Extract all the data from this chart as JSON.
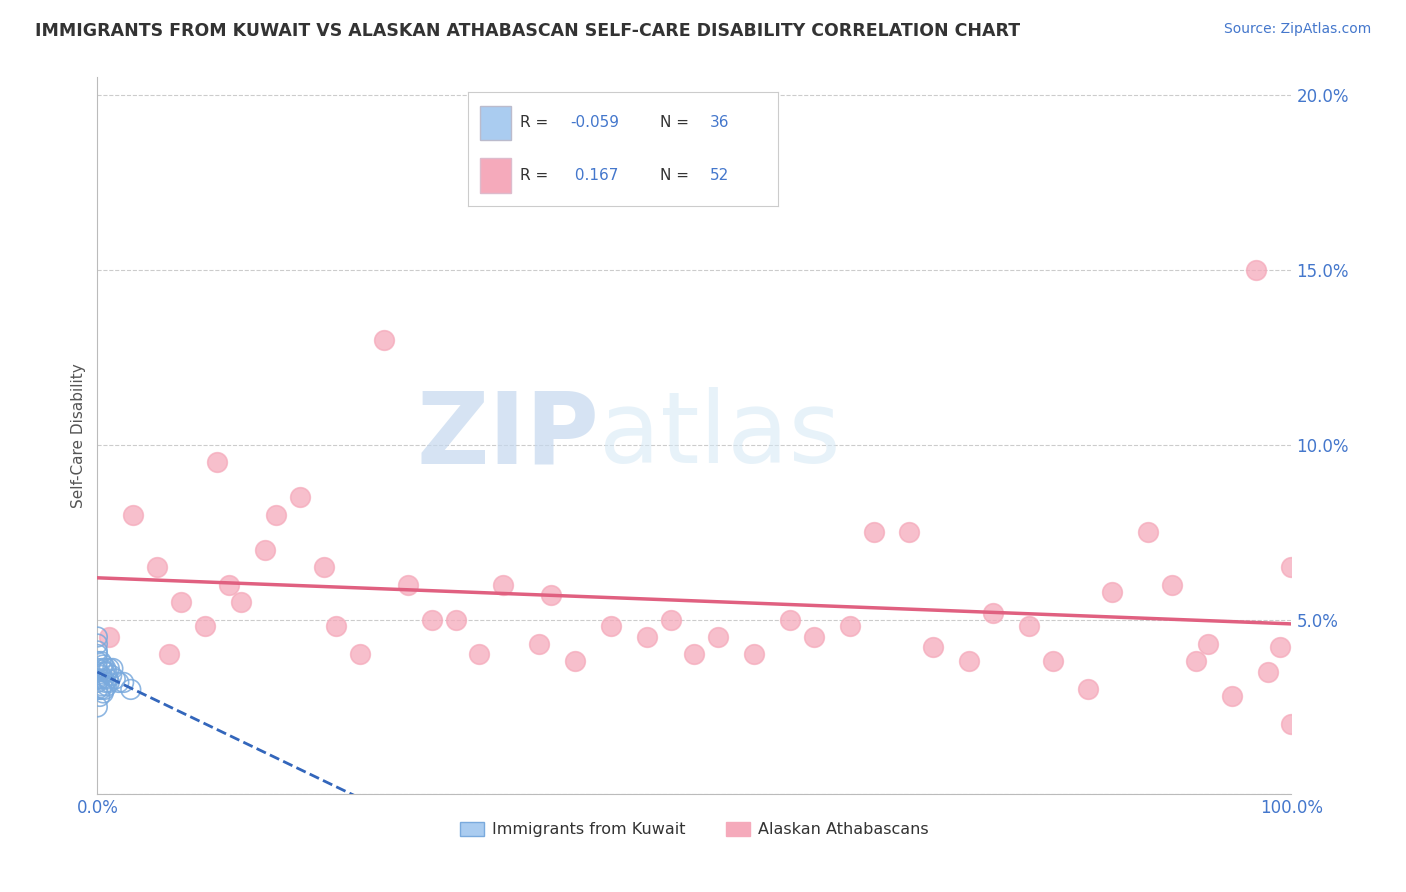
{
  "title": "IMMIGRANTS FROM KUWAIT VS ALASKAN ATHABASCAN SELF-CARE DISABILITY CORRELATION CHART",
  "source": "Source: ZipAtlas.com",
  "ylabel": "Self-Care Disability",
  "xlim": [
    0.0,
    1.0
  ],
  "ylim": [
    0.0,
    0.205
  ],
  "yticks": [
    0.0,
    0.05,
    0.1,
    0.15,
    0.2
  ],
  "ytick_labels": [
    "",
    "5.0%",
    "10.0%",
    "15.0%",
    "20.0%"
  ],
  "xticks": [
    0.0,
    0.25,
    0.5,
    0.75,
    1.0
  ],
  "xtick_labels": [
    "0.0%",
    "",
    "",
    "",
    "100.0%"
  ],
  "blue_R": "-0.059",
  "blue_N": "36",
  "pink_R": "0.167",
  "pink_N": "52",
  "blue_color": "#aaccf0",
  "pink_color": "#f5aabb",
  "blue_edge_color": "#7aaadd",
  "blue_line_color": "#3366bb",
  "pink_line_color": "#e06080",
  "legend_label_blue": "Immigrants from Kuwait",
  "legend_label_pink": "Alaskan Athabascans",
  "blue_scatter_x": [
    0.0,
    0.0,
    0.0,
    0.0,
    0.0,
    0.0,
    0.0,
    0.0,
    0.0,
    0.0,
    0.0,
    0.002,
    0.002,
    0.003,
    0.003,
    0.003,
    0.004,
    0.004,
    0.005,
    0.005,
    0.005,
    0.006,
    0.006,
    0.007,
    0.007,
    0.008,
    0.008,
    0.009,
    0.01,
    0.01,
    0.012,
    0.013,
    0.015,
    0.018,
    0.022,
    0.028
  ],
  "blue_scatter_y": [
    0.025,
    0.03,
    0.032,
    0.033,
    0.035,
    0.036,
    0.038,
    0.04,
    0.041,
    0.043,
    0.045,
    0.028,
    0.033,
    0.03,
    0.034,
    0.038,
    0.031,
    0.036,
    0.029,
    0.033,
    0.037,
    0.03,
    0.035,
    0.032,
    0.036,
    0.031,
    0.035,
    0.033,
    0.032,
    0.036,
    0.034,
    0.036,
    0.033,
    0.032,
    0.032,
    0.03
  ],
  "pink_scatter_x": [
    0.01,
    0.03,
    0.05,
    0.06,
    0.07,
    0.09,
    0.1,
    0.11,
    0.12,
    0.14,
    0.15,
    0.17,
    0.19,
    0.2,
    0.22,
    0.24,
    0.26,
    0.28,
    0.3,
    0.32,
    0.34,
    0.37,
    0.38,
    0.4,
    0.43,
    0.46,
    0.48,
    0.5,
    0.52,
    0.55,
    0.58,
    0.6,
    0.63,
    0.65,
    0.68,
    0.7,
    0.73,
    0.75,
    0.78,
    0.8,
    0.83,
    0.85,
    0.88,
    0.9,
    0.92,
    0.93,
    0.95,
    0.97,
    0.98,
    0.99,
    1.0,
    1.0
  ],
  "pink_scatter_y": [
    0.045,
    0.08,
    0.065,
    0.04,
    0.055,
    0.048,
    0.095,
    0.06,
    0.055,
    0.07,
    0.08,
    0.085,
    0.065,
    0.048,
    0.04,
    0.13,
    0.06,
    0.05,
    0.05,
    0.04,
    0.06,
    0.043,
    0.057,
    0.038,
    0.048,
    0.045,
    0.05,
    0.04,
    0.045,
    0.04,
    0.05,
    0.045,
    0.048,
    0.075,
    0.075,
    0.042,
    0.038,
    0.052,
    0.048,
    0.038,
    0.03,
    0.058,
    0.075,
    0.06,
    0.038,
    0.043,
    0.028,
    0.15,
    0.035,
    0.042,
    0.02,
    0.065
  ],
  "watermark_zip": "ZIP",
  "watermark_atlas": "atlas",
  "background_color": "#ffffff",
  "grid_color": "#cccccc",
  "title_color": "#333333",
  "axis_tick_color": "#4477cc",
  "source_color": "#4477cc",
  "ylabel_color": "#555555"
}
